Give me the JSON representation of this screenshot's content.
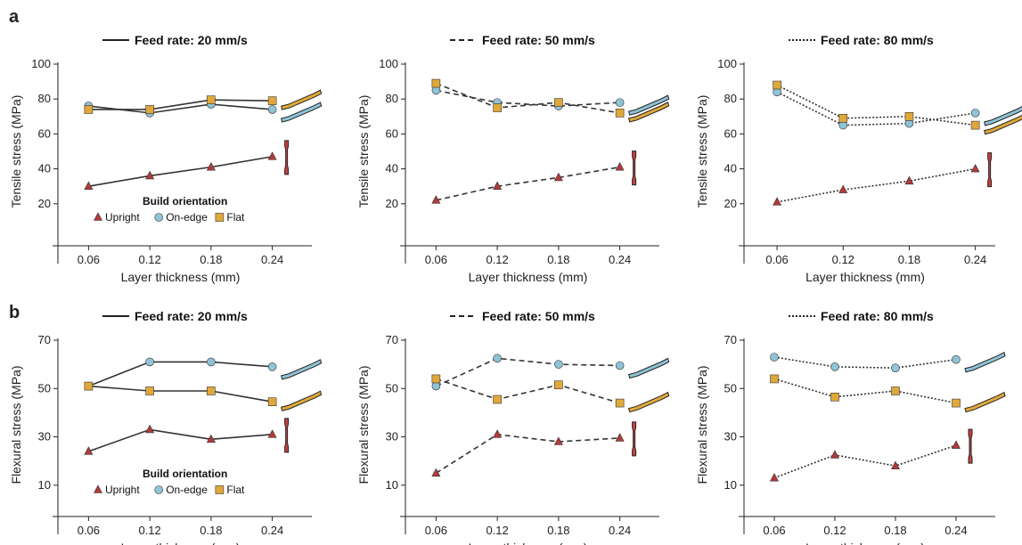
{
  "panels": [
    {
      "letter": "a"
    },
    {
      "letter": "b"
    }
  ],
  "legend": {
    "title": "Build orientation",
    "items": [
      {
        "name": "Upright",
        "marker": "triangle",
        "color": "#b23a3a"
      },
      {
        "name": "On-edge",
        "marker": "circle",
        "color": "#8fc3d6"
      },
      {
        "name": "Flat",
        "marker": "square",
        "color": "#e0a83a"
      }
    ]
  },
  "line_styles": {
    "Feed rate: 20 mm/s": "solid",
    "Feed rate: 50 mm/s": "dashed",
    "Feed rate: 80 mm/s": "dotted"
  },
  "chart_data": [
    {
      "type": "line",
      "panel": "a",
      "title": "Feed rate: 20 mm/s",
      "xlabel": "Layer thickness (mm)",
      "ylabel": "Tensile stress (MPa)",
      "x": [
        0.06,
        0.12,
        0.18,
        0.24
      ],
      "xlim": [
        0.03,
        0.27
      ],
      "ylim": [
        0,
        100
      ],
      "yticks": [
        20,
        40,
        60,
        80,
        100
      ],
      "xticks": [
        "0.06",
        "0.12",
        "0.18",
        "0.24"
      ],
      "series": [
        {
          "name": "Upright",
          "values": [
            30,
            36,
            41,
            47
          ]
        },
        {
          "name": "On-edge",
          "values": [
            76,
            72,
            77,
            74
          ]
        },
        {
          "name": "Flat",
          "values": [
            74,
            74,
            79.5,
            79
          ]
        }
      ],
      "legend": true
    },
    {
      "type": "line",
      "panel": "a",
      "title": "Feed rate: 50 mm/s",
      "xlabel": "Layer thickness (mm)",
      "ylabel": "Tensile stress (MPa)",
      "x": [
        0.06,
        0.12,
        0.18,
        0.24
      ],
      "xlim": [
        0.03,
        0.27
      ],
      "ylim": [
        0,
        100
      ],
      "yticks": [
        20,
        40,
        60,
        80,
        100
      ],
      "xticks": [
        "0.06",
        "0.12",
        "0.18",
        "0.24"
      ],
      "series": [
        {
          "name": "Upright",
          "values": [
            22,
            30,
            35,
            41
          ]
        },
        {
          "name": "On-edge",
          "values": [
            85,
            78,
            76,
            78
          ]
        },
        {
          "name": "Flat",
          "values": [
            89,
            75,
            78,
            72
          ]
        }
      ],
      "legend": false
    },
    {
      "type": "line",
      "panel": "a",
      "title": "Feed rate: 80 mm/s",
      "xlabel": "Layer thickness (mm)",
      "ylabel": "Tensile stress (MPa)",
      "x": [
        0.06,
        0.12,
        0.18,
        0.24
      ],
      "xlim": [
        0.03,
        0.25
      ],
      "ylim": [
        0,
        100
      ],
      "yticks": [
        20,
        40,
        60,
        80,
        100
      ],
      "xticks": [
        "0.06",
        "0.12",
        "0.18",
        "0.24"
      ],
      "series": [
        {
          "name": "Upright",
          "values": [
            21,
            28,
            33,
            40
          ]
        },
        {
          "name": "On-edge",
          "values": [
            84,
            65,
            66,
            72
          ]
        },
        {
          "name": "Flat",
          "values": [
            88,
            69,
            70,
            65
          ]
        }
      ],
      "legend": false
    },
    {
      "type": "line",
      "panel": "b",
      "title": "Feed rate: 20 mm/s",
      "xlabel": "Layer thickness (mm)",
      "ylabel": "Flexural stress (MPa)",
      "x": [
        0.06,
        0.12,
        0.18,
        0.24
      ],
      "xlim": [
        0.03,
        0.27
      ],
      "ylim": [
        0,
        70
      ],
      "yticks": [
        10,
        30,
        50,
        70
      ],
      "xticks": [
        "0.06",
        "0.12",
        "0.18",
        "0.24"
      ],
      "series": [
        {
          "name": "Upright",
          "values": [
            24,
            33,
            29,
            31
          ]
        },
        {
          "name": "On-edge",
          "values": [
            51,
            61,
            61,
            59
          ]
        },
        {
          "name": "Flat",
          "values": [
            51,
            49,
            49,
            44.5
          ]
        }
      ],
      "legend": true
    },
    {
      "type": "line",
      "panel": "b",
      "title": "Feed rate: 50 mm/s",
      "xlabel": "Layer thickness (mm)",
      "ylabel": "Flexural stress (MPa)",
      "x": [
        0.06,
        0.12,
        0.18,
        0.24
      ],
      "xlim": [
        0.03,
        0.27
      ],
      "ylim": [
        0,
        70
      ],
      "yticks": [
        10,
        30,
        50,
        70
      ],
      "xticks": [
        "0.06",
        "0.12",
        "0.18",
        "0.24"
      ],
      "series": [
        {
          "name": "Upright",
          "values": [
            15,
            31,
            28,
            29.5
          ]
        },
        {
          "name": "On-edge",
          "values": [
            51,
            62.5,
            60,
            59.5
          ]
        },
        {
          "name": "Flat",
          "values": [
            54,
            45.5,
            51.5,
            44
          ]
        }
      ],
      "legend": false
    },
    {
      "type": "line",
      "panel": "b",
      "title": "Feed rate: 80 mm/s",
      "xlabel": "Layer thickness (mm)",
      "ylabel": "Flexural stress (MPa)",
      "x": [
        0.06,
        0.12,
        0.18,
        0.24
      ],
      "xlim": [
        0.03,
        0.27
      ],
      "ylim": [
        0,
        70
      ],
      "yticks": [
        10,
        30,
        50,
        70
      ],
      "xticks": [
        "0.06",
        "0.12",
        "0.18",
        "0.24"
      ],
      "series": [
        {
          "name": "Upright",
          "values": [
            13,
            22.5,
            18,
            26.5
          ]
        },
        {
          "name": "On-edge",
          "values": [
            63,
            59,
            58.5,
            62
          ]
        },
        {
          "name": "Flat",
          "values": [
            54,
            46.5,
            49,
            44
          ]
        }
      ],
      "legend": false
    }
  ]
}
